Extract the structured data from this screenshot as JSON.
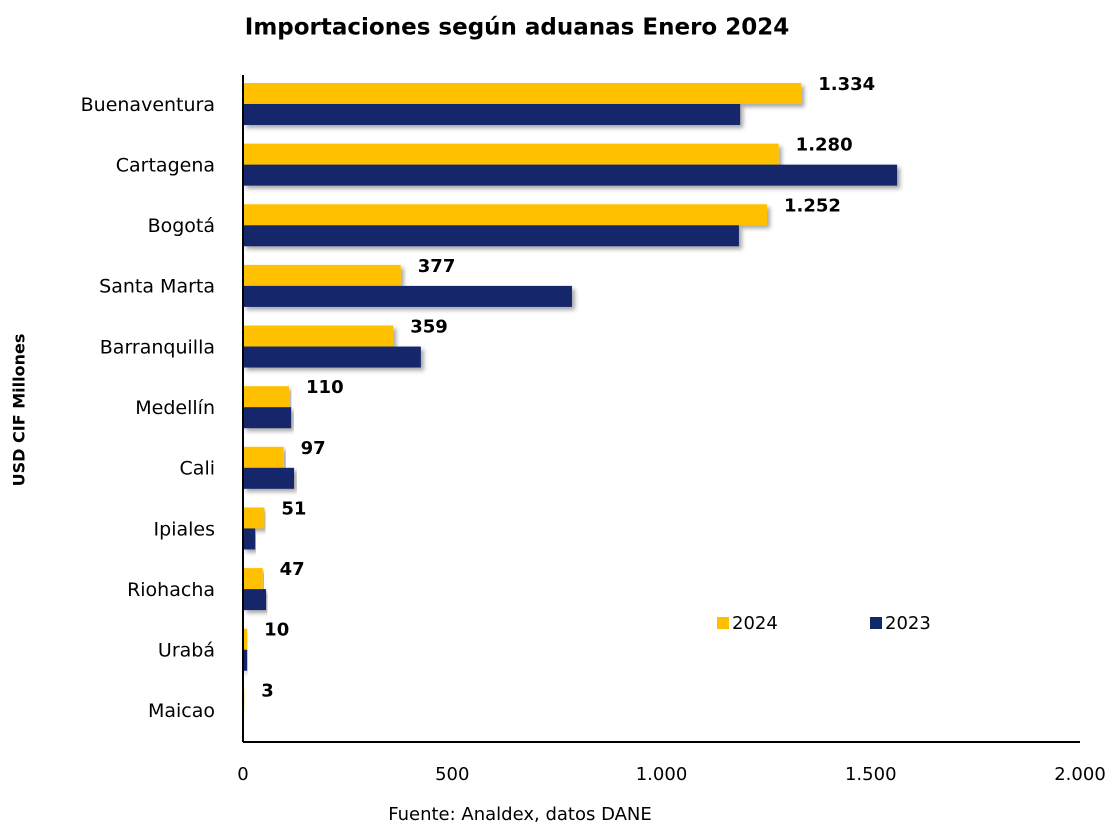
{
  "chart_data": {
    "type": "bar",
    "orientation": "horizontal",
    "title": "Importaciones según aduanas Enero 2024",
    "y_label": "USD CIF Millones",
    "source": "Fuente: Analdex, datos DANE",
    "categories": [
      "Buenaventura",
      "Cartagena",
      "Bogotá",
      "Santa Marta",
      "Barranquilla",
      "Medellín",
      "Cali",
      "Ipiales",
      "Riohacha",
      "Urabá",
      "Maicao"
    ],
    "series": [
      {
        "name": "2024",
        "color": "#FFC000",
        "values": [
          1334,
          1280,
          1252,
          377,
          359,
          110,
          97,
          51,
          47,
          10,
          3
        ],
        "value_labels": [
          "1.334",
          "1.280",
          "1.252",
          "377",
          "359",
          "110",
          "97",
          "51",
          "47",
          "10",
          "3"
        ]
      },
      {
        "name": "2023",
        "color": "#12286B",
        "values": [
          1188,
          1563,
          1185,
          786,
          425,
          115,
          122,
          29,
          55,
          10,
          1
        ]
      }
    ],
    "xlim": [
      0,
      2000
    ],
    "xticks": [
      0,
      500,
      {
        "value": 1000,
        "label": "1.000"
      },
      {
        "value": 1500,
        "label": "1.500"
      },
      {
        "value": 2000,
        "label": "2.000"
      }
    ],
    "legend": "lower right",
    "grid": false
  }
}
